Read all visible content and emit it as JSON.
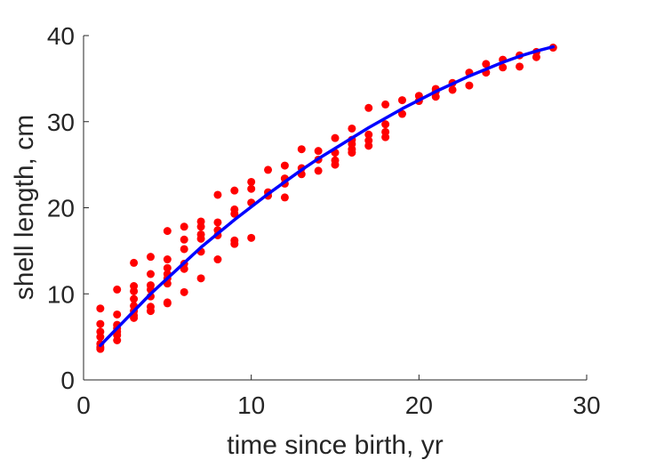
{
  "chart_data": {
    "type": "scatter",
    "title": "",
    "xlabel": "time since birth, yr",
    "ylabel": "shell length, cm",
    "xlim": [
      0,
      30
    ],
    "ylim": [
      0,
      40
    ],
    "xticks": [
      0,
      10,
      20,
      30
    ],
    "yticks": [
      0,
      10,
      20,
      30,
      40
    ],
    "grid": false,
    "legend": "none",
    "colors": {
      "points": "#ff0000",
      "fit": "#0000ff",
      "axes": "#262626"
    },
    "series": [
      {
        "kind": "points",
        "x": [
          1,
          1,
          1,
          1,
          1,
          1,
          1,
          2,
          2,
          2,
          2,
          2,
          2,
          2,
          3,
          3,
          3,
          3,
          3,
          3,
          3,
          3,
          4,
          4,
          4,
          4,
          4,
          4,
          4,
          5,
          5,
          5,
          5,
          5,
          5,
          5,
          5,
          6,
          6,
          6,
          6,
          6,
          6,
          7,
          7,
          7,
          7,
          7,
          7,
          8,
          8,
          8,
          8,
          8,
          9,
          9,
          9,
          9,
          9,
          10,
          10,
          10,
          10,
          11,
          11,
          11,
          12,
          12,
          12,
          12,
          13,
          13,
          13,
          14,
          14,
          14,
          15,
          15,
          15,
          15,
          16,
          16,
          16,
          16,
          16,
          17,
          17,
          17,
          17,
          18,
          18,
          18,
          18,
          19,
          19,
          20,
          20,
          21,
          21,
          21,
          22,
          22,
          23,
          23,
          24,
          24,
          25,
          25,
          26,
          26,
          27,
          27,
          28
        ],
        "y": [
          8.3,
          6.5,
          5.6,
          5.0,
          4.2,
          3.8,
          3.6,
          10.5,
          7.6,
          6.4,
          6.0,
          5.6,
          5.2,
          4.6,
          13.6,
          10.9,
          10.3,
          9.4,
          8.6,
          8.0,
          7.5,
          7.2,
          14.3,
          12.3,
          11.0,
          10.5,
          9.7,
          8.5,
          8.0,
          17.3,
          14.0,
          13.0,
          12.3,
          11.8,
          11.2,
          9.0,
          8.9,
          17.8,
          16.3,
          15.2,
          13.5,
          12.9,
          10.2,
          18.4,
          17.8,
          16.9,
          16.4,
          14.9,
          11.8,
          21.5,
          18.3,
          17.4,
          16.8,
          14.0,
          22.0,
          19.8,
          19.3,
          16.2,
          15.8,
          23.0,
          22.2,
          20.6,
          16.5,
          24.4,
          21.8,
          21.4,
          24.9,
          23.4,
          22.8,
          21.2,
          26.8,
          24.6,
          23.9,
          26.6,
          25.6,
          24.3,
          28.1,
          26.4,
          25.5,
          25.0,
          29.2,
          27.9,
          27.4,
          26.8,
          26.4,
          31.6,
          28.5,
          27.8,
          27.2,
          32.0,
          29.7,
          28.8,
          28.2,
          32.5,
          30.9,
          33.0,
          32.4,
          33.8,
          33.5,
          32.9,
          34.5,
          33.7,
          35.7,
          34.2,
          36.7,
          35.7,
          37.2,
          36.3,
          37.7,
          36.4,
          38.1,
          37.5,
          38.6
        ]
      },
      {
        "kind": "fit",
        "x": [
          1,
          2,
          3,
          4,
          5,
          6,
          7,
          8,
          9,
          10,
          11,
          12,
          13,
          14,
          15,
          16,
          17,
          18,
          19,
          20,
          21,
          22,
          23,
          24,
          25,
          26,
          27,
          28
        ],
        "y": [
          4.0,
          6.0,
          8.0,
          10.0,
          11.8,
          13.6,
          15.4,
          17.0,
          18.6,
          20.1,
          21.6,
          23.0,
          24.4,
          25.7,
          26.9,
          28.1,
          29.3,
          30.4,
          31.5,
          32.5,
          33.5,
          34.4,
          35.3,
          36.1,
          36.9,
          37.6,
          38.2,
          38.7
        ]
      }
    ]
  }
}
